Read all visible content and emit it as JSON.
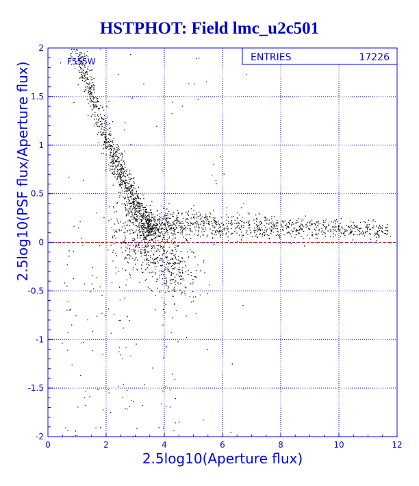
{
  "chart_data": {
    "type": "scatter",
    "title": "HSTPHOT: Field lmc_u2c501",
    "xlabel": "2.5log10(Aperture flux)",
    "ylabel": "2.5log10(PSF flux/Aperture flux)",
    "xlim": [
      0,
      12
    ],
    "ylim": [
      -2,
      2
    ],
    "x_ticks": [
      "0",
      "2",
      "4",
      "6",
      "8",
      "10",
      "12"
    ],
    "y_ticks": [
      "-2",
      "-1.5",
      "-1",
      "-0.5",
      "0",
      "0.5",
      "1",
      "1.5",
      "2"
    ],
    "grid": true,
    "reference_line": {
      "y": 0,
      "color": "#cc0000",
      "style": "dashed"
    },
    "filter_label": "F555W",
    "stats": {
      "label": "ENTRIES",
      "value": "17226"
    },
    "colors": {
      "title": "#0000cc",
      "axes": "#0000ff",
      "points": "#000000",
      "reference": "#cc0000"
    },
    "series": [
      {
        "marker": "dot",
        "color": "#000000",
        "point_count_drawn": 17226,
        "structure": [
          {
            "component": "bright-upper-branch",
            "x": [
              0.8,
              2.2
            ],
            "y": [
              2.0,
              0.9
            ]
          },
          {
            "component": "knee",
            "x": [
              2.2,
              3.5
            ],
            "y": [
              0.9,
              0.05
            ]
          },
          {
            "component": "main-sequence-tail",
            "x": [
              3.5,
              11.7
            ],
            "y": [
              0.2,
              0.12
            ]
          },
          {
            "component": "lower-faint-spread",
            "x": [
              2.3,
              5.0
            ],
            "y": [
              0.2,
              -0.6
            ]
          },
          {
            "component": "scattered-outliers",
            "x": [
              0.4,
              11.5
            ],
            "y": [
              -2.0,
              2.0
            ]
          }
        ]
      }
    ]
  }
}
